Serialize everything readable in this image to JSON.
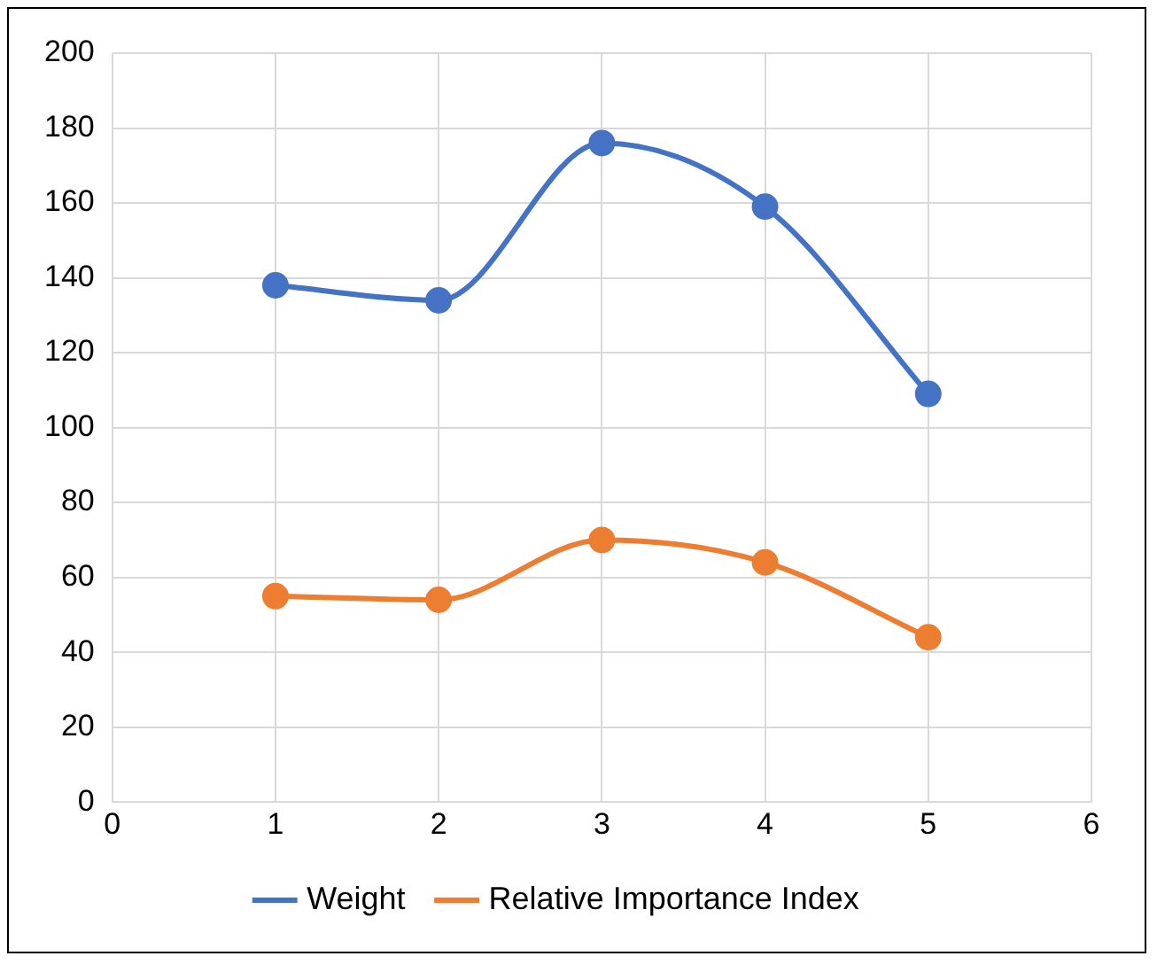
{
  "chart_data": {
    "type": "line",
    "x": [
      1,
      2,
      3,
      4,
      5
    ],
    "series": [
      {
        "name": "Weight",
        "color": "#4472c4",
        "values": [
          138,
          134,
          176,
          159,
          109
        ]
      },
      {
        "name": "Relative Importance Index",
        "color": "#ed7d31",
        "values": [
          55,
          54,
          70,
          64,
          44
        ]
      }
    ],
    "xlim": [
      0,
      6
    ],
    "xticks": [
      0,
      1,
      2,
      3,
      4,
      5,
      6
    ],
    "ylim": [
      0,
      200
    ],
    "yticks": [
      0,
      20,
      40,
      60,
      80,
      100,
      120,
      140,
      160,
      180,
      200
    ],
    "grid": true,
    "legend": "bottom",
    "marker": "circle",
    "line_style": "solid"
  }
}
